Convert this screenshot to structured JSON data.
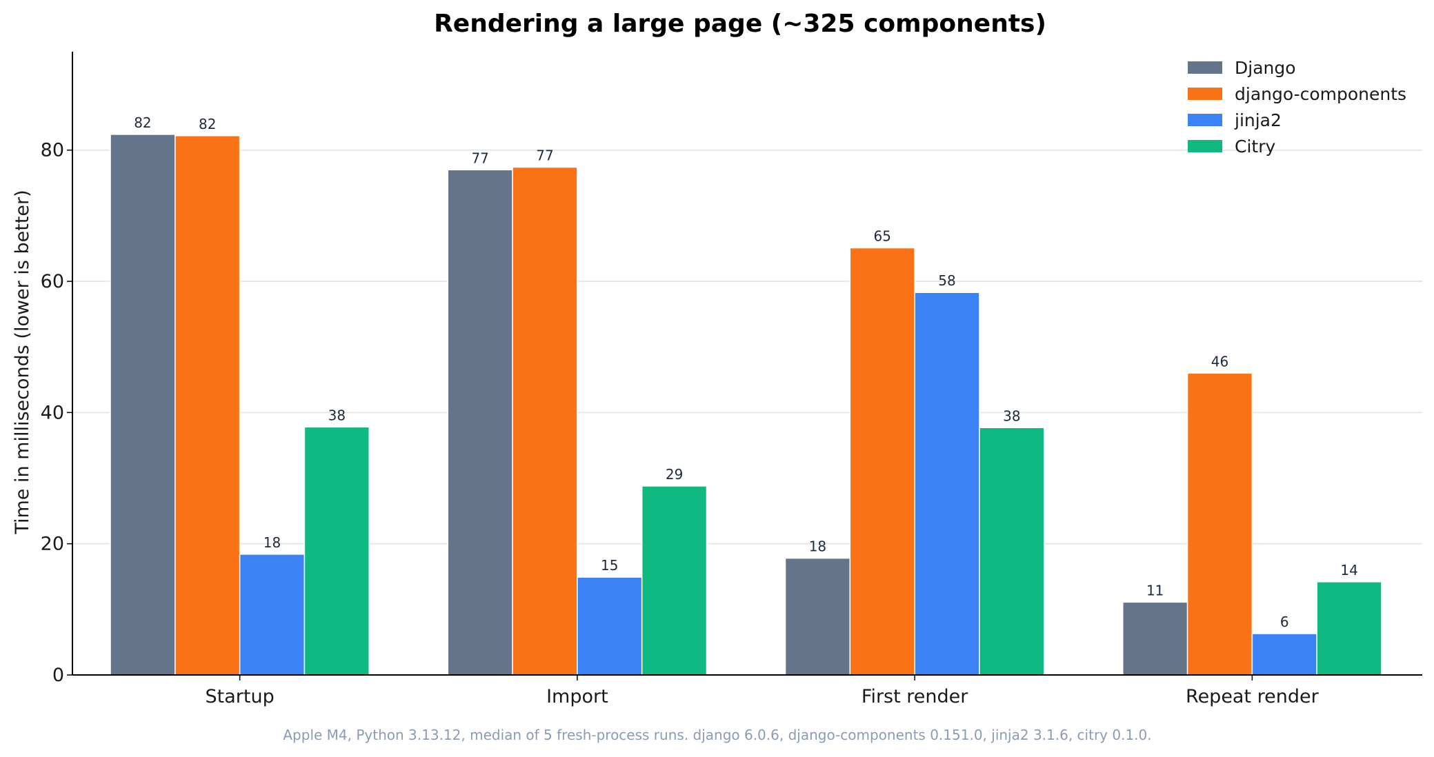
{
  "chart_data": {
    "type": "bar",
    "title": "Rendering a large page (~325 components)",
    "xlabel": "",
    "ylabel": "Time in milliseconds (lower is better)",
    "ylim": [
      0,
      95
    ],
    "yticks": [
      0,
      20,
      40,
      60,
      80
    ],
    "grid": "horizontal",
    "legend_position": "top-right",
    "categories": [
      "Startup",
      "Import",
      "First render",
      "Repeat render"
    ],
    "series": [
      {
        "name": "Django",
        "color": "#64748b",
        "values": [
          82.4,
          77.0,
          17.8,
          11.1
        ],
        "labels": [
          "82",
          "77",
          "18",
          "11"
        ]
      },
      {
        "name": "django-components",
        "color": "#f97316",
        "values": [
          82.2,
          77.4,
          65.1,
          46.0
        ],
        "labels": [
          "82",
          "77",
          "65",
          "46"
        ]
      },
      {
        "name": "jinja2",
        "color": "#3b82f6",
        "values": [
          18.4,
          14.9,
          58.3,
          6.3
        ],
        "labels": [
          "18",
          "15",
          "58",
          "6"
        ]
      },
      {
        "name": "Citry",
        "color": "#10b981",
        "values": [
          37.8,
          28.8,
          37.7,
          14.2
        ],
        "labels": [
          "38",
          "29",
          "38",
          "14"
        ]
      }
    ],
    "footnote": "Apple M4, Python 3.13.12, median of 5 fresh-process runs.  django 6.0.6, django-components 0.151.0, jinja2 3.1.6, citry 0.1.0."
  }
}
